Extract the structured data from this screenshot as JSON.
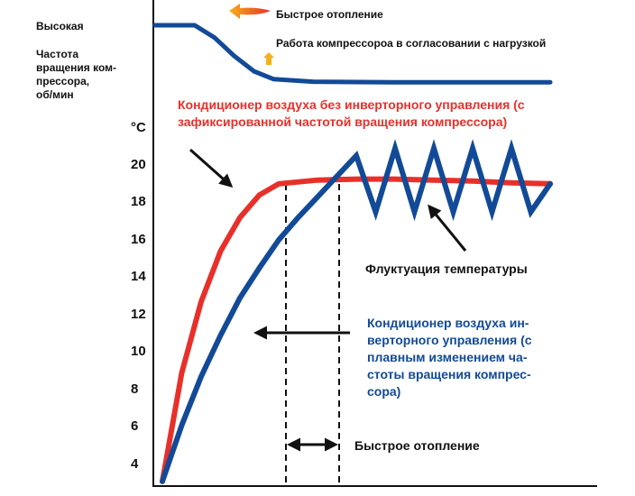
{
  "chart_data": {
    "type": "line",
    "y_unit": "°C",
    "yticks": [
      "20",
      "18",
      "16",
      "14",
      "12",
      "10",
      "8",
      "6",
      "4"
    ],
    "ylim": [
      3,
      22
    ],
    "compressor_panel": {
      "ylabel_lines": [
        "Частота",
        "вращения ком-",
        "прессора,",
        "об/мин"
      ],
      "level_label": "Высокая"
    },
    "series": [
      {
        "name": "Кондиционер воздуха без инверторного управления (с зафиксированной частотой вращения компрессора)",
        "label_lines": [
          "Кондиционер воздуха без инверторного управления (с",
          "зафиксированной частотой вращения компрессора)"
        ],
        "color": "#e8302a",
        "t": [
          0,
          0.05,
          0.1,
          0.15,
          0.2,
          0.25,
          0.3,
          0.4,
          0.5,
          0.6,
          0.7,
          0.8,
          0.9,
          1.0
        ],
        "values": [
          3.0,
          8.8,
          12.6,
          15.3,
          17.1,
          18.3,
          18.9,
          19.1,
          19.15,
          19.15,
          19.1,
          19.05,
          18.95,
          18.9
        ]
      },
      {
        "name": "Кондиционер воздуха инверторного управления (с плавным изменением частоты вращения компрессора)",
        "label_lines": [
          "Кондиционер воздуха ин-",
          "верторного управления (с",
          "плавным изменением ча-",
          "стоты вращения компрес-",
          "сора)"
        ],
        "color": "#124a97",
        "t": [
          0,
          0.05,
          0.1,
          0.15,
          0.2,
          0.25,
          0.3,
          0.35,
          0.4,
          0.45,
          0.5,
          0.55,
          0.6,
          0.65,
          0.7,
          0.75,
          0.8,
          0.85,
          0.9,
          0.95,
          1.0
        ],
        "values": [
          3.0,
          6.0,
          8.6,
          10.8,
          12.8,
          14.4,
          15.9,
          17.1,
          18.2,
          19.3,
          20.4,
          17.4,
          20.8,
          17.4,
          20.8,
          17.4,
          20.8,
          17.4,
          20.8,
          17.4,
          18.9
        ]
      }
    ],
    "compressor_speed": {
      "color": "#124a97",
      "t": [
        0,
        0.1,
        0.15,
        0.2,
        0.25,
        0.3,
        0.4,
        0.6,
        0.8,
        1.0
      ],
      "values": [
        1.0,
        1.0,
        0.8,
        0.5,
        0.25,
        0.12,
        0.08,
        0.07,
        0.07,
        0.07
      ]
    },
    "annotations": {
      "fast_heating_top": "Быстрое отопление",
      "compressor_load": "Работа компрессороа в согласовании с нагрузкой",
      "fluctuation": "Флуктуация температуры",
      "fast_heating_bottom": "Быстрое отопление"
    }
  }
}
